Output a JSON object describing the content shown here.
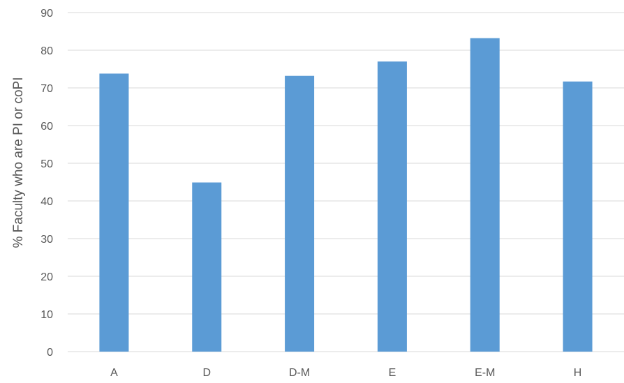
{
  "chart_data": {
    "type": "bar",
    "categories": [
      "A",
      "D",
      "D-M",
      "E",
      "E-M",
      "H"
    ],
    "values": [
      73.8,
      44.9,
      73.2,
      77.0,
      83.2,
      71.7
    ],
    "title": "",
    "xlabel": "",
    "ylabel": "% Faculty who are PI or coPI",
    "ylim": [
      0,
      90
    ],
    "yticks": [
      "0",
      "10",
      "20",
      "30",
      "40",
      "50",
      "60",
      "70",
      "80",
      "90"
    ],
    "grid": true,
    "legend": "none",
    "colors": {
      "bar": "#5b9bd5",
      "grid": "#d9d9d9",
      "text": "#595959"
    }
  }
}
